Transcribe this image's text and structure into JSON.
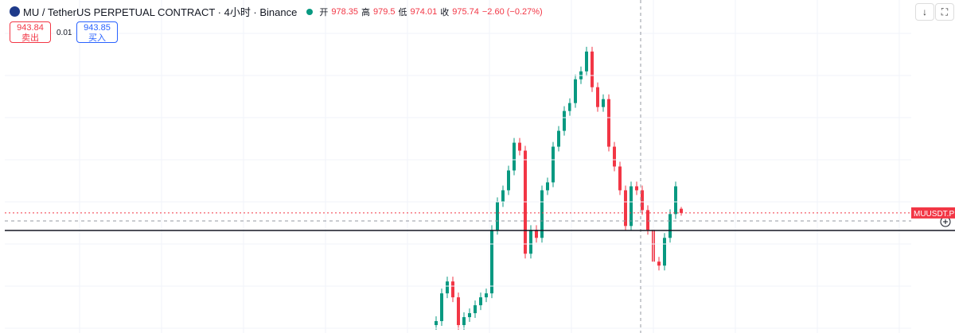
{
  "header": {
    "symbol": "MU / TetherUS PERPETUAL CONTRACT · 4小时 · Binance",
    "labels": {
      "open": "开",
      "high": "高",
      "low": "低",
      "close": "收"
    },
    "change": "−2.60 (−0.27%)"
  },
  "trade": {
    "sell_price": "943.84",
    "sell_label": "卖出",
    "quantity": "0.01",
    "buy_price": "943.85",
    "buy_label": "买入"
  },
  "chart_data": {
    "type": "candlestick",
    "open": [
      905,
      907.5,
      925,
      932.5,
      922.5,
      905,
      910,
      912.5,
      917.5,
      922.5,
      925,
      965,
      982.5,
      990,
      1002.5,
      1020,
      1015,
      950,
      965,
      960,
      990,
      995,
      1017.5,
      1027.5,
      1040,
      1045,
      1060,
      1065,
      1077.5,
      1055,
      1042.5,
      1047.5,
      1017.5,
      1005,
      990,
      967.5,
      992.5,
      990,
      977.5,
      965,
      945,
      942.5,
      960,
      975,
      978.35
    ],
    "high": [
      910.5,
      928,
      935.5,
      935.5,
      925.5,
      913,
      915.5,
      920.5,
      925.5,
      928,
      968,
      985.5,
      993,
      1005.5,
      1023,
      1023,
      1018,
      968,
      968,
      993,
      998,
      1020.5,
      1030.5,
      1043,
      1048,
      1063,
      1068,
      1080.5,
      1080.5,
      1058,
      1050.5,
      1050.5,
      1020.5,
      1008,
      993,
      995.5,
      995.5,
      993,
      980.5,
      968,
      948,
      963,
      978,
      995.5,
      979.5
    ],
    "low": [
      902,
      904.5,
      922,
      919.5,
      902,
      902,
      907,
      909.5,
      914.5,
      919.5,
      922,
      962,
      979.5,
      987,
      999.5,
      1012,
      947,
      947,
      957,
      957,
      987,
      992,
      1014.5,
      1024.5,
      1037,
      1042,
      1057,
      1062,
      1052,
      1039.5,
      1039.5,
      1014.5,
      1002,
      987,
      964.5,
      964.5,
      987,
      974.5,
      962,
      942,
      939.5,
      939.5,
      957,
      972,
      974.01
    ],
    "close": [
      907.5,
      925,
      932.5,
      922.5,
      905,
      910,
      912.5,
      917.5,
      922.5,
      925,
      965,
      982.5,
      990,
      1002.5,
      1020,
      1015,
      950,
      965,
      960,
      990,
      995,
      1017.5,
      1027.5,
      1040,
      1045,
      1060,
      1065,
      1077.5,
      1055,
      1042.5,
      1047.5,
      1017.5,
      1005,
      990,
      967.5,
      992.5,
      990,
      977.5,
      965,
      945,
      942.5,
      960,
      975,
      992.5,
      975.74
    ],
    "up_color": "#089981",
    "down_color": "#f23645",
    "ylim": [
      900,
      1110
    ],
    "price_label": "MUUSDT.P"
  }
}
